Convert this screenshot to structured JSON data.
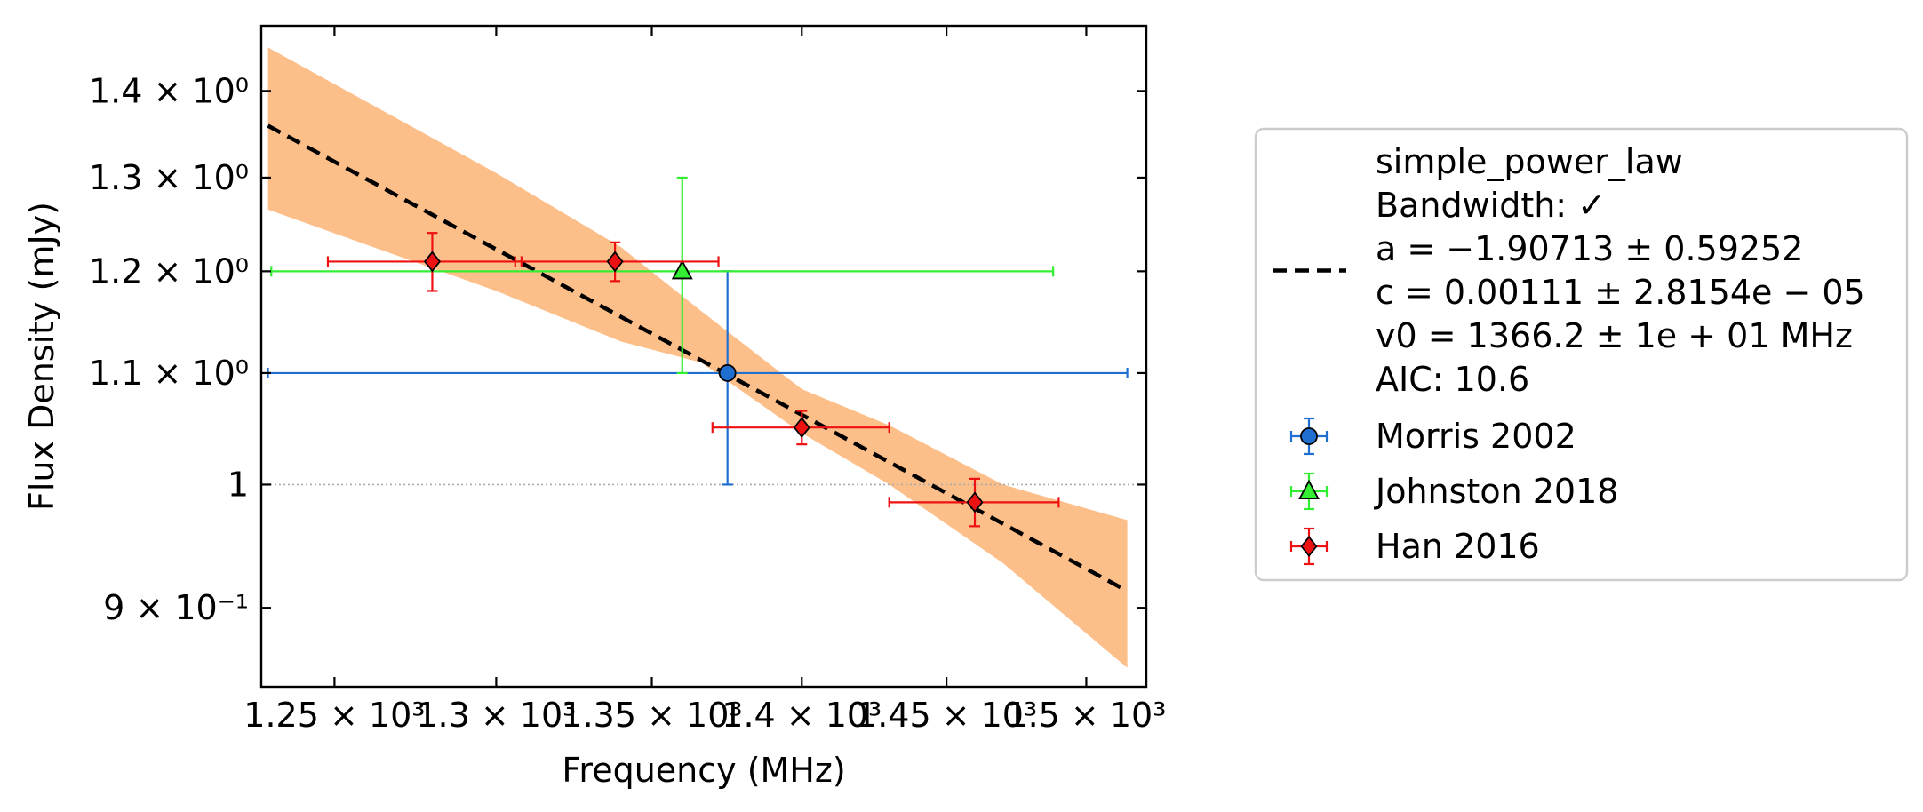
{
  "chart_data": {
    "type": "scatter",
    "title": "",
    "xlabel": "Frequency (MHz)",
    "ylabel": "Flux Density (mJy)",
    "xscale": "log",
    "yscale": "log",
    "xlim": [
      1228,
      1522
    ],
    "ylim": [
      0.8413,
      1.4802
    ],
    "grid": false,
    "legend_position": "outside-right",
    "x_ticks": [
      {
        "value": 1250,
        "label": "1.25 × 10³"
      },
      {
        "value": 1300,
        "label": "1.3 × 10³"
      },
      {
        "value": 1350,
        "label": "1.35 × 10³"
      },
      {
        "value": 1400,
        "label": "1.4 × 10³"
      },
      {
        "value": 1450,
        "label": "1.45 × 10³"
      },
      {
        "value": 1500,
        "label": "1.5 × 10³"
      }
    ],
    "y_ticks": [
      {
        "value": 0.9,
        "label": "9 × 10⁻¹"
      },
      {
        "value": 1.0,
        "label": "1"
      },
      {
        "value": 1.1,
        "label": "1.1 × 10⁰"
      },
      {
        "value": 1.2,
        "label": "1.2 × 10⁰"
      },
      {
        "value": 1.3,
        "label": "1.3 × 10⁰"
      },
      {
        "value": 1.4,
        "label": "1.4 × 10⁰"
      }
    ],
    "reference_line": {
      "y": 1.0,
      "style": "dotted",
      "color": "#aaaaaa"
    },
    "fit": {
      "name": "simple_power_law",
      "legend_lines": [
        "simple_power_law",
        "Bandwidth: ✓",
        "a = −1.90713 ± 0.59252",
        "c = 0.00111 ± 2.8154e − 05",
        "v0 = 1366.2 ± 1e + 01 MHz",
        "AIC: 10.6"
      ],
      "line_color": "#000000",
      "line_style": "dashed",
      "line_points": [
        [
          1230,
          1.359
        ],
        [
          1515,
          0.913
        ]
      ],
      "band_color": "#fdbf8a",
      "band": [
        {
          "x": 1230,
          "upper": 1.453,
          "lower": 1.265
        },
        {
          "x": 1300,
          "upper": 1.305,
          "lower": 1.18
        },
        {
          "x": 1340,
          "upper": 1.225,
          "lower": 1.13
        },
        {
          "x": 1366.2,
          "upper": 1.16,
          "lower": 1.11
        },
        {
          "x": 1400,
          "upper": 1.085,
          "lower": 1.045
        },
        {
          "x": 1430,
          "upper": 1.052,
          "lower": 1.0
        },
        {
          "x": 1470,
          "upper": 1.0,
          "lower": 0.935
        },
        {
          "x": 1515,
          "upper": 0.97,
          "lower": 0.855
        }
      ]
    },
    "series": [
      {
        "name": "Morris 2002",
        "color": "#1f6fd0",
        "marker": "circle",
        "points": [
          {
            "x": 1375,
            "y": 1.1,
            "xerr": [
              145,
              140
            ],
            "yerr": [
              0.1,
              0.1
            ]
          }
        ]
      },
      {
        "name": "Johnston 2018",
        "color": "#33ee33",
        "marker": "triangle",
        "points": [
          {
            "x": 1360,
            "y": 1.2,
            "xerr": [
              129,
              128
            ],
            "yerr": [
              0.1,
              0.1
            ]
          }
        ]
      },
      {
        "name": "Han 2016",
        "color": "#ee1111",
        "marker": "diamond",
        "points": [
          {
            "x": 1280,
            "y": 1.21,
            "xerr": [
              32,
              28
            ],
            "yerr": [
              0.03,
              0.03
            ]
          },
          {
            "x": 1338,
            "y": 1.21,
            "xerr": [
              32,
              34
            ],
            "yerr": [
              0.02,
              0.02
            ]
          },
          {
            "x": 1400,
            "y": 1.05,
            "xerr": [
              30,
              30
            ],
            "yerr": [
              0.015,
              0.015
            ]
          },
          {
            "x": 1460,
            "y": 0.985,
            "xerr": [
              30,
              30
            ],
            "yerr": [
              0.02,
              0.02
            ]
          }
        ]
      }
    ]
  }
}
